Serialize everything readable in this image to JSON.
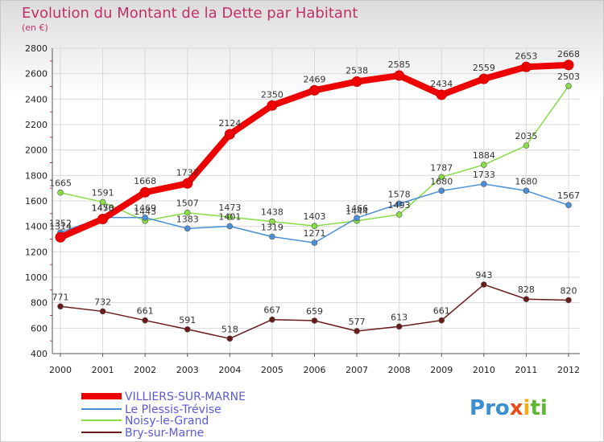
{
  "chart_data": {
    "type": "line",
    "title": "Evolution du Montant de la Dette par Habitant",
    "subtitle": "(en €)",
    "x": [
      "2000",
      "2001",
      "2002",
      "2003",
      "2004",
      "2005",
      "2006",
      "2007",
      "2008",
      "2009",
      "2010",
      "2011",
      "2012"
    ],
    "ylim": [
      400,
      2800
    ],
    "yticks": [
      400,
      600,
      800,
      1000,
      1200,
      1400,
      1600,
      1800,
      2000,
      2200,
      2400,
      2600,
      2800
    ],
    "grid": true,
    "legend_position": "bottom-left",
    "series": [
      {
        "name": "VILLIERS-SUR-MARNE",
        "color": "#ee0000",
        "values": [
          1314,
          1458,
          1668,
          1737,
          2124,
          2350,
          2469,
          2538,
          2585,
          2434,
          2559,
          2653,
          2668
        ]
      },
      {
        "name": "Le Plessis-Trévise",
        "color": "#4a90d9",
        "values": [
          1352,
          1470,
          1469,
          1383,
          1401,
          1319,
          1271,
          1466,
          1578,
          1680,
          1733,
          1680,
          1567
        ]
      },
      {
        "name": "Noisy-le-Grand",
        "color": "#88dd44",
        "values": [
          1665,
          1591,
          1443,
          1507,
          1473,
          1438,
          1403,
          1444,
          1493,
          1787,
          1884,
          2035,
          2503
        ]
      },
      {
        "name": "Bry-sur-Marne",
        "color": "#6b1a1a",
        "values": [
          771,
          732,
          661,
          591,
          518,
          667,
          659,
          577,
          613,
          661,
          943,
          828,
          820
        ]
      }
    ]
  },
  "branding": {
    "logo_letters": [
      "P",
      "r",
      "o",
      "x",
      "i",
      "t",
      "i"
    ],
    "logo_colors": [
      "#3a8fd0",
      "#3a8fd0",
      "#3a8fd0",
      "#e84d1c",
      "#f2a91c",
      "#5cb82e",
      "#5cb82e"
    ]
  }
}
